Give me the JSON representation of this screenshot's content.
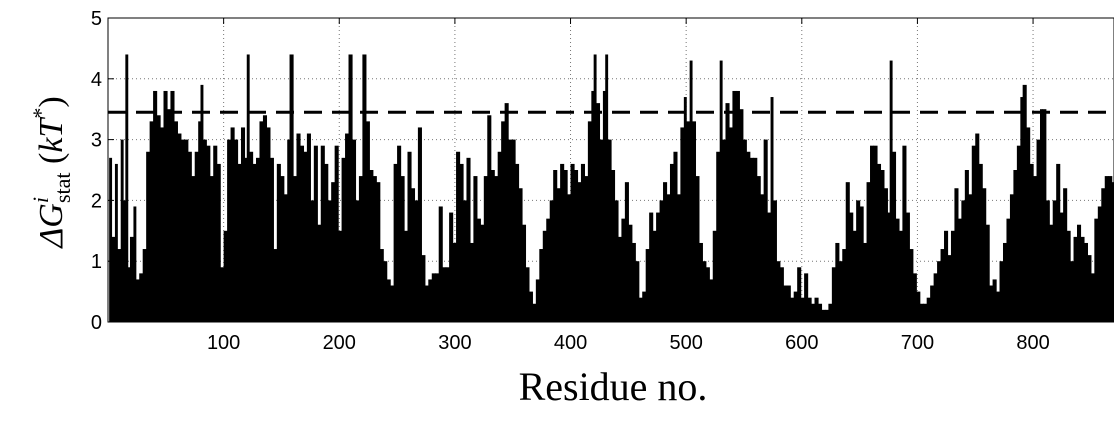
{
  "chart_data": {
    "type": "bar",
    "xlabel": "Residue no.",
    "ylabel": "ΔG^i_stat (kT*)",
    "ylabel_parts": {
      "delta_g": "ΔG",
      "sup_i": "i",
      "sub_stat": "stat",
      "paren_open": " (",
      "kt": "kT",
      "sup_star": "*",
      "paren_close": ")"
    },
    "xlim": [
      0,
      870
    ],
    "ylim": [
      0,
      5
    ],
    "x_ticks": [
      100,
      200,
      300,
      400,
      500,
      600,
      700,
      800
    ],
    "y_ticks": [
      0,
      1,
      2,
      3,
      4,
      5
    ],
    "grid": true,
    "threshold": {
      "value": 3.45,
      "style": "dashed"
    },
    "bar_color": "#000000",
    "profile": [
      [
        1,
        2.7
      ],
      [
        3,
        1.4
      ],
      [
        6,
        2.6
      ],
      [
        8,
        1.2
      ],
      [
        11,
        3.0
      ],
      [
        13,
        2.0
      ],
      [
        15,
        4.4
      ],
      [
        17,
        0.9
      ],
      [
        19,
        1.4
      ],
      [
        22,
        1.9
      ],
      [
        24,
        0.7
      ],
      [
        27,
        0.8
      ],
      [
        30,
        1.2
      ],
      [
        33,
        2.8
      ],
      [
        36,
        3.3
      ],
      [
        39,
        3.8
      ],
      [
        42,
        3.4
      ],
      [
        45,
        3.2
      ],
      [
        48,
        3.8
      ],
      [
        51,
        3.5
      ],
      [
        54,
        3.8
      ],
      [
        57,
        3.3
      ],
      [
        60,
        3.1
      ],
      [
        63,
        3.0
      ],
      [
        66,
        3.0
      ],
      [
        69,
        2.8
      ],
      [
        72,
        2.4
      ],
      [
        75,
        2.8
      ],
      [
        78,
        3.3
      ],
      [
        80,
        3.9
      ],
      [
        82,
        3.0
      ],
      [
        85,
        2.9
      ],
      [
        88,
        2.4
      ],
      [
        91,
        2.9
      ],
      [
        94,
        2.6
      ],
      [
        97,
        0.9
      ],
      [
        100,
        1.5
      ],
      [
        103,
        3.0
      ],
      [
        106,
        3.2
      ],
      [
        109,
        3.0
      ],
      [
        112,
        2.6
      ],
      [
        115,
        3.2
      ],
      [
        118,
        2.7
      ],
      [
        120,
        4.4
      ],
      [
        122,
        2.8
      ],
      [
        125,
        2.6
      ],
      [
        128,
        2.7
      ],
      [
        131,
        3.3
      ],
      [
        134,
        3.4
      ],
      [
        137,
        3.2
      ],
      [
        140,
        2.7
      ],
      [
        143,
        1.2
      ],
      [
        146,
        2.6
      ],
      [
        149,
        2.4
      ],
      [
        152,
        2.1
      ],
      [
        155,
        3.0
      ],
      [
        157,
        4.4
      ],
      [
        160,
        2.4
      ],
      [
        163,
        3.1
      ],
      [
        166,
        2.9
      ],
      [
        169,
        2.8
      ],
      [
        172,
        3.1
      ],
      [
        175,
        2.0
      ],
      [
        178,
        2.9
      ],
      [
        181,
        1.6
      ],
      [
        184,
        2.9
      ],
      [
        187,
        2.6
      ],
      [
        190,
        2.0
      ],
      [
        193,
        2.3
      ],
      [
        196,
        2.9
      ],
      [
        199,
        1.5
      ],
      [
        202,
        2.7
      ],
      [
        205,
        3.1
      ],
      [
        208,
        4.4
      ],
      [
        211,
        3.0
      ],
      [
        214,
        2.0
      ],
      [
        217,
        2.4
      ],
      [
        220,
        4.4
      ],
      [
        223,
        3.3
      ],
      [
        226,
        2.5
      ],
      [
        229,
        2.4
      ],
      [
        232,
        2.3
      ],
      [
        235,
        1.2
      ],
      [
        238,
        1.0
      ],
      [
        241,
        0.7
      ],
      [
        244,
        0.6
      ],
      [
        247,
        2.6
      ],
      [
        250,
        2.9
      ],
      [
        253,
        2.4
      ],
      [
        256,
        1.5
      ],
      [
        259,
        2.8
      ],
      [
        262,
        2.2
      ],
      [
        265,
        2.0
      ],
      [
        268,
        3.2
      ],
      [
        271,
        1.1
      ],
      [
        274,
        0.6
      ],
      [
        277,
        0.7
      ],
      [
        280,
        0.8
      ],
      [
        283,
        0.8
      ],
      [
        286,
        1.9
      ],
      [
        289,
        0.9
      ],
      [
        292,
        0.9
      ],
      [
        295,
        1.8
      ],
      [
        298,
        1.3
      ],
      [
        301,
        2.8
      ],
      [
        304,
        2.6
      ],
      [
        307,
        2.0
      ],
      [
        310,
        2.7
      ],
      [
        313,
        1.3
      ],
      [
        316,
        2.4
      ],
      [
        319,
        1.7
      ],
      [
        322,
        1.6
      ],
      [
        325,
        2.4
      ],
      [
        328,
        3.4
      ],
      [
        331,
        2.5
      ],
      [
        334,
        2.4
      ],
      [
        337,
        2.8
      ],
      [
        340,
        3.3
      ],
      [
        343,
        3.6
      ],
      [
        346,
        3.0
      ],
      [
        349,
        3.0
      ],
      [
        352,
        2.6
      ],
      [
        355,
        2.2
      ],
      [
        358,
        1.6
      ],
      [
        361,
        0.9
      ],
      [
        364,
        0.5
      ],
      [
        367,
        0.3
      ],
      [
        370,
        0.7
      ],
      [
        373,
        1.2
      ],
      [
        376,
        1.5
      ],
      [
        379,
        1.7
      ],
      [
        382,
        2.0
      ],
      [
        385,
        2.5
      ],
      [
        388,
        2.2
      ],
      [
        391,
        2.6
      ],
      [
        394,
        2.5
      ],
      [
        397,
        2.1
      ],
      [
        400,
        2.6
      ],
      [
        403,
        2.5
      ],
      [
        406,
        2.3
      ],
      [
        409,
        2.6
      ],
      [
        412,
        2.4
      ],
      [
        415,
        3.3
      ],
      [
        418,
        3.8
      ],
      [
        420,
        4.4
      ],
      [
        422,
        3.6
      ],
      [
        425,
        3.0
      ],
      [
        428,
        3.8
      ],
      [
        430,
        4.4
      ],
      [
        432,
        3.0
      ],
      [
        435,
        2.5
      ],
      [
        438,
        2.0
      ],
      [
        441,
        1.4
      ],
      [
        444,
        1.7
      ],
      [
        447,
        2.3
      ],
      [
        450,
        1.6
      ],
      [
        453,
        1.3
      ],
      [
        456,
        1.0
      ],
      [
        459,
        0.4
      ],
      [
        462,
        0.5
      ],
      [
        465,
        1.2
      ],
      [
        468,
        1.8
      ],
      [
        471,
        1.5
      ],
      [
        474,
        1.8
      ],
      [
        477,
        2.0
      ],
      [
        480,
        2.3
      ],
      [
        483,
        2.1
      ],
      [
        486,
        2.6
      ],
      [
        489,
        2.8
      ],
      [
        492,
        2.1
      ],
      [
        495,
        3.2
      ],
      [
        498,
        3.7
      ],
      [
        500,
        3.3
      ],
      [
        503,
        4.3
      ],
      [
        505,
        3.3
      ],
      [
        508,
        2.4
      ],
      [
        511,
        1.3
      ],
      [
        514,
        1.0
      ],
      [
        517,
        0.9
      ],
      [
        520,
        0.7
      ],
      [
        523,
        1.5
      ],
      [
        526,
        2.8
      ],
      [
        529,
        4.3
      ],
      [
        531,
        3.0
      ],
      [
        534,
        3.6
      ],
      [
        537,
        3.2
      ],
      [
        540,
        3.8
      ],
      [
        543,
        3.8
      ],
      [
        546,
        3.5
      ],
      [
        549,
        3.0
      ],
      [
        552,
        2.8
      ],
      [
        555,
        2.7
      ],
      [
        558,
        2.7
      ],
      [
        561,
        2.4
      ],
      [
        564,
        2.1
      ],
      [
        567,
        3.0
      ],
      [
        570,
        1.8
      ],
      [
        573,
        3.7
      ],
      [
        575,
        2.0
      ],
      [
        578,
        1.0
      ],
      [
        581,
        0.9
      ],
      [
        584,
        0.6
      ],
      [
        587,
        0.6
      ],
      [
        590,
        0.4
      ],
      [
        593,
        0.5
      ],
      [
        596,
        0.9
      ],
      [
        599,
        0.4
      ],
      [
        602,
        0.8
      ],
      [
        605,
        0.4
      ],
      [
        608,
        0.3
      ],
      [
        611,
        0.4
      ],
      [
        614,
        0.3
      ],
      [
        617,
        0.2
      ],
      [
        620,
        0.2
      ],
      [
        623,
        0.3
      ],
      [
        626,
        0.9
      ],
      [
        629,
        1.3
      ],
      [
        632,
        1.0
      ],
      [
        635,
        1.2
      ],
      [
        638,
        2.3
      ],
      [
        641,
        1.8
      ],
      [
        644,
        1.5
      ],
      [
        647,
        2.0
      ],
      [
        650,
        1.9
      ],
      [
        653,
        1.3
      ],
      [
        656,
        2.3
      ],
      [
        659,
        2.9
      ],
      [
        662,
        2.9
      ],
      [
        665,
        2.6
      ],
      [
        668,
        2.5
      ],
      [
        671,
        2.2
      ],
      [
        674,
        1.8
      ],
      [
        676,
        4.3
      ],
      [
        678,
        2.8
      ],
      [
        681,
        1.7
      ],
      [
        684,
        1.5
      ],
      [
        687,
        2.9
      ],
      [
        690,
        1.8
      ],
      [
        693,
        1.2
      ],
      [
        696,
        0.8
      ],
      [
        699,
        0.5
      ],
      [
        702,
        0.3
      ],
      [
        705,
        0.3
      ],
      [
        708,
        0.4
      ],
      [
        711,
        0.6
      ],
      [
        714,
        0.8
      ],
      [
        717,
        1.0
      ],
      [
        720,
        1.2
      ],
      [
        723,
        1.5
      ],
      [
        726,
        1.1
      ],
      [
        729,
        1.5
      ],
      [
        732,
        2.2
      ],
      [
        735,
        1.7
      ],
      [
        738,
        2.0
      ],
      [
        741,
        2.5
      ],
      [
        744,
        2.1
      ],
      [
        747,
        2.9
      ],
      [
        750,
        3.1
      ],
      [
        753,
        2.6
      ],
      [
        756,
        2.2
      ],
      [
        759,
        1.6
      ],
      [
        762,
        0.6
      ],
      [
        765,
        0.7
      ],
      [
        768,
        0.5
      ],
      [
        771,
        1.0
      ],
      [
        774,
        1.3
      ],
      [
        777,
        1.7
      ],
      [
        780,
        2.1
      ],
      [
        783,
        2.5
      ],
      [
        786,
        2.9
      ],
      [
        789,
        3.7
      ],
      [
        791,
        3.9
      ],
      [
        794,
        3.2
      ],
      [
        797,
        2.6
      ],
      [
        800,
        2.4
      ],
      [
        803,
        3.0
      ],
      [
        806,
        3.5
      ],
      [
        808,
        3.5
      ],
      [
        811,
        2.0
      ],
      [
        814,
        1.6
      ],
      [
        817,
        2.0
      ],
      [
        820,
        2.6
      ],
      [
        823,
        1.8
      ],
      [
        826,
        2.2
      ],
      [
        829,
        1.5
      ],
      [
        832,
        1.0
      ],
      [
        835,
        1.4
      ],
      [
        838,
        1.6
      ],
      [
        841,
        1.4
      ],
      [
        844,
        1.3
      ],
      [
        847,
        1.1
      ],
      [
        850,
        0.8
      ],
      [
        853,
        1.7
      ],
      [
        856,
        1.9
      ],
      [
        859,
        2.2
      ],
      [
        862,
        2.4
      ],
      [
        865,
        2.4
      ],
      [
        868,
        2.3
      ]
    ]
  }
}
